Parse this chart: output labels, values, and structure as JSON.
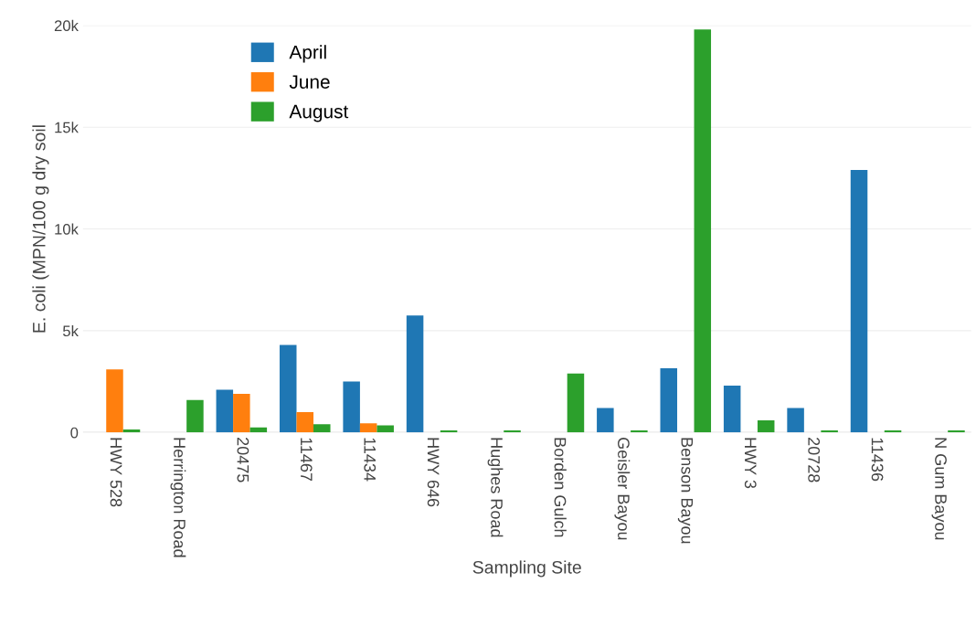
{
  "chart_data": {
    "type": "bar",
    "xlabel": "Sampling Site",
    "ylabel": "E. coli (MPN/100 g dry soil",
    "categories": [
      "HWY 528",
      "Herrington Road",
      "20475",
      "11467",
      "11434",
      "HWY 646",
      "Hughes Road",
      "Borden Gulch",
      "Geisler Bayou",
      "Benson Bayou",
      "HWY 3",
      "20728",
      "11436",
      "N Gum Bayou"
    ],
    "series": [
      {
        "name": "April",
        "color": "#1f77b4",
        "values": [
          null,
          null,
          2100,
          4300,
          2500,
          5750,
          null,
          null,
          1200,
          3150,
          2300,
          1200,
          12900,
          null
        ]
      },
      {
        "name": "June",
        "color": "#ff7f0e",
        "values": [
          3100,
          null,
          1900,
          1000,
          450,
          null,
          null,
          null,
          null,
          null,
          null,
          null,
          null,
          null
        ]
      },
      {
        "name": "August",
        "color": "#2ca02c",
        "values": [
          150,
          1600,
          250,
          400,
          350,
          100,
          100,
          2900,
          100,
          19800,
          600,
          100,
          100,
          100
        ]
      }
    ],
    "ylim": [
      0,
      20000
    ],
    "yticks": [
      0,
      {
        "value": 5000,
        "label": "5k"
      },
      {
        "value": 10000,
        "label": "10k"
      },
      {
        "value": 15000,
        "label": "15k"
      },
      {
        "value": 20000,
        "label": "20k"
      }
    ],
    "grid": "y",
    "legend": "top left"
  }
}
